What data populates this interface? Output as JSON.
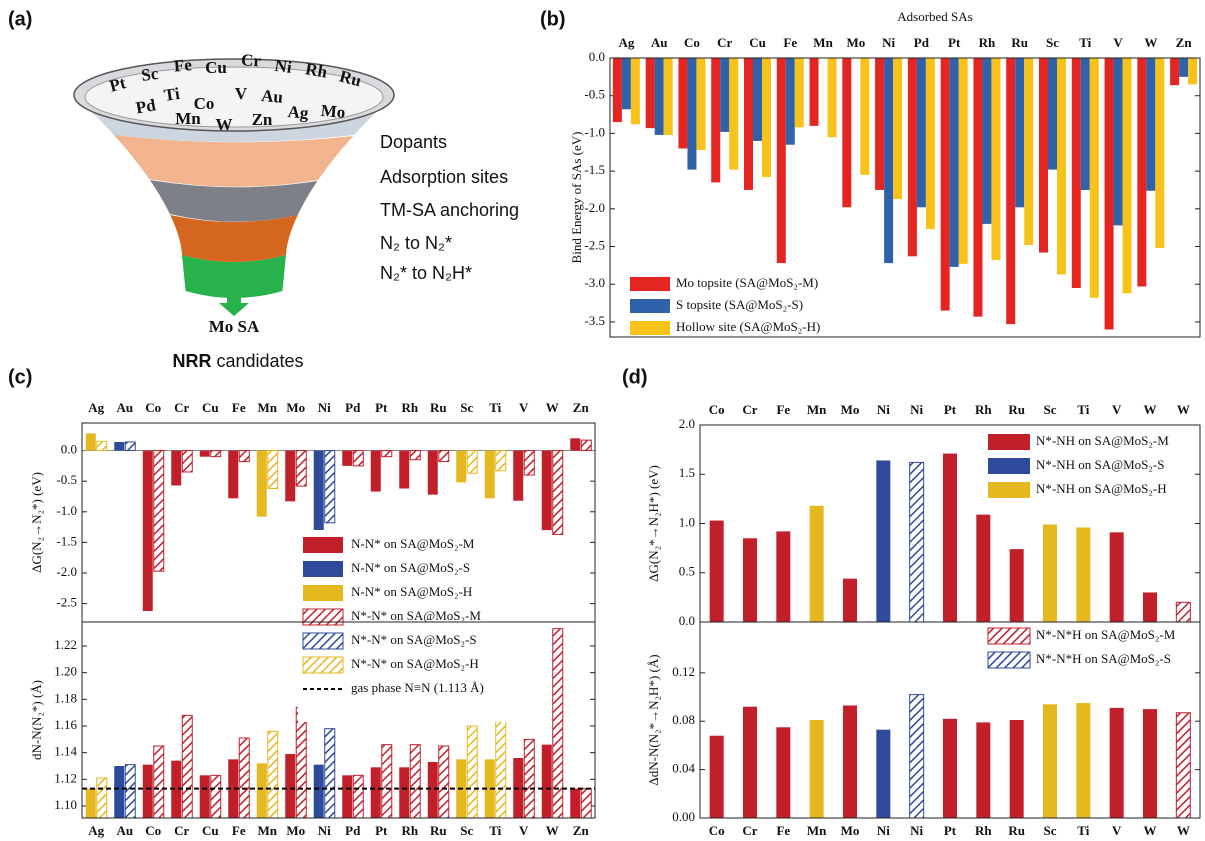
{
  "panel_labels": [
    "(a)",
    "(b)",
    "(c)",
    "(d)"
  ],
  "funnel": {
    "elements": [
      "Pt",
      "Sc",
      "Fe",
      "Cu",
      "Cr",
      "Ni",
      "Rh",
      "Ru",
      "Ti",
      "Co",
      "V",
      "Au",
      "Pd",
      "Mn",
      "W",
      "Zn",
      "Ag",
      "Mo"
    ],
    "stages": [
      "Dopants",
      "Adsorption sites",
      "TM-SA anchoring",
      "N₂ to N₂*",
      "N₂* to N₂H*"
    ],
    "output": "Mo SA",
    "caption_bold": "NRR",
    "caption": "candidates"
  },
  "chart_data": [
    {
      "type": "bar",
      "title": "Adsorbed SAs",
      "ylabel": "Bind Energy of SAs (eV)",
      "categories": [
        "Ag",
        "Au",
        "Co",
        "Cr",
        "Cu",
        "Fe",
        "Mn",
        "Mo",
        "Ni",
        "Pd",
        "Pt",
        "Rh",
        "Ru",
        "Sc",
        "Ti",
        "V",
        "W",
        "Zn"
      ],
      "series": [
        {
          "name": "Mo topsite (SA@MoS₂-M)",
          "color": "#e52521",
          "values": [
            -0.85,
            -0.93,
            -1.2,
            -1.65,
            -1.75,
            -2.72,
            -0.9,
            -1.98,
            -1.75,
            -2.63,
            -3.35,
            -3.43,
            -3.53,
            -2.58,
            -3.05,
            -3.6,
            -3.03,
            -0.36
          ]
        },
        {
          "name": "S topsite (SA@MoS₂-S)",
          "color": "#2f62a8",
          "values": [
            -0.68,
            -1.02,
            -1.48,
            -0.98,
            -1.1,
            -1.15,
            null,
            null,
            -2.72,
            -1.98,
            -2.77,
            -2.2,
            -1.98,
            -1.48,
            -1.75,
            -2.22,
            -1.76,
            -0.25
          ]
        },
        {
          "name": "Hollow site (SA@MoS₂-H)",
          "color": "#f7c31a",
          "values": [
            -0.88,
            -1.02,
            -1.22,
            -1.48,
            -1.58,
            -0.92,
            -1.05,
            -1.55,
            -1.87,
            -2.27,
            -2.73,
            -2.68,
            -2.48,
            -2.87,
            -3.18,
            -3.12,
            -2.52,
            -0.35
          ]
        }
      ],
      "ylim": [
        -3.7,
        0
      ],
      "yticks": [
        {
          "value": 0,
          "label": "0.0"
        },
        -0.5,
        {
          "value": -1,
          "label": "-1.0"
        },
        -1.5,
        {
          "value": -2,
          "label": "-2.0"
        },
        -2.5,
        {
          "value": -3,
          "label": "-3.0"
        },
        -3.5
      ],
      "legend": "lower left"
    },
    {
      "type": "bar",
      "legend": "lower right",
      "categories": [
        "Ag",
        "Au",
        "Co",
        "Cr",
        "Cu",
        "Fe",
        "Mn",
        "Mo",
        "Ni",
        "Pd",
        "Pt",
        "Rh",
        "Ru",
        "Sc",
        "Ti",
        "V",
        "W",
        "Zn"
      ],
      "panels": [
        {
          "ylabel": "ΔG(N₂→N₂*) (eV)",
          "ylim": [
            -2.8,
            0.45
          ],
          "yticks": [
            {
              "value": 0,
              "label": "0.0"
            },
            -0.5,
            {
              "value": -1,
              "label": "-1.0"
            },
            -1.5,
            {
              "value": -2,
              "label": "-2.0"
            },
            -2.5
          ]
        },
        {
          "ylabel": "dN-N(N₂*) (Å)",
          "ylim": [
            1.091,
            1.238
          ],
          "yticks": [
            {
              "value": 1.1,
              "label": "1.10"
            },
            1.12,
            1.14,
            1.16,
            1.18,
            {
              "value": 1.2,
              "label": "1.20"
            },
            1.22
          ]
        }
      ],
      "series": [
        {
          "name": "N-N* on SA@MoS₂-M",
          "color": "#c1202a",
          "hatch": false,
          "values": [
            null,
            null,
            -2.62,
            -0.57,
            -0.1,
            -0.78,
            null,
            -0.83,
            null,
            -0.25,
            -0.67,
            -0.62,
            -0.72,
            null,
            null,
            -0.82,
            -1.3,
            0.2
          ],
          "d_values": [
            null,
            null,
            1.131,
            1.134,
            1.123,
            1.135,
            null,
            1.139,
            null,
            1.123,
            1.129,
            1.129,
            1.133,
            null,
            null,
            1.136,
            1.146,
            1.113
          ]
        },
        {
          "name": "N-N* on SA@MoS₂-S",
          "color": "#2e4a9a",
          "hatch": false,
          "values": [
            null,
            0.14,
            null,
            null,
            null,
            null,
            null,
            null,
            -1.35,
            null,
            null,
            null,
            null,
            null,
            null,
            null,
            null,
            null
          ],
          "d_values": [
            null,
            1.13,
            null,
            null,
            null,
            null,
            null,
            null,
            1.131,
            null,
            null,
            null,
            null,
            null,
            null,
            null,
            null,
            null
          ]
        },
        {
          "name": "N-N* on SA@MoS₂-H",
          "color": "#e6b820",
          "hatch": false,
          "values": [
            0.28,
            null,
            null,
            null,
            null,
            null,
            -1.08,
            null,
            null,
            null,
            null,
            null,
            null,
            -0.52,
            -0.78,
            null,
            null,
            null
          ],
          "d_values": [
            1.113,
            null,
            null,
            null,
            null,
            null,
            1.132,
            null,
            null,
            null,
            null,
            null,
            null,
            1.135,
            1.135,
            null,
            null,
            null
          ]
        },
        {
          "name": "N*-N* on SA@MoS₂-M",
          "color": "#c1202a",
          "hatch": true,
          "values": [
            null,
            null,
            -1.97,
            -0.35,
            -0.1,
            -0.18,
            null,
            -0.58,
            null,
            -0.25,
            -0.1,
            -0.15,
            -0.18,
            null,
            null,
            -0.4,
            -1.37,
            0.17
          ],
          "d_values": [
            null,
            null,
            1.145,
            1.168,
            1.123,
            1.151,
            null,
            1.174,
            null,
            1.123,
            1.146,
            1.146,
            1.145,
            null,
            null,
            1.15,
            1.233,
            1.113
          ]
        },
        {
          "name": "N*-N* on SA@MoS₂-S",
          "color": "#2e4a9a",
          "hatch": true,
          "values": [
            null,
            0.14,
            null,
            null,
            null,
            null,
            null,
            null,
            -1.18,
            null,
            null,
            null,
            null,
            null,
            null,
            null,
            null,
            null
          ],
          "d_values": [
            null,
            1.131,
            null,
            null,
            null,
            null,
            null,
            null,
            1.158,
            null,
            null,
            null,
            null,
            null,
            null,
            null,
            null,
            null
          ]
        },
        {
          "name": "N*-N* on SA@MoS₂-H",
          "color": "#e6b820",
          "hatch": true,
          "values": [
            0.15,
            null,
            null,
            null,
            null,
            null,
            -0.62,
            null,
            null,
            null,
            null,
            null,
            null,
            -0.37,
            -0.33,
            null,
            null,
            null
          ],
          "d_values": [
            1.121,
            null,
            null,
            null,
            null,
            null,
            1.156,
            null,
            null,
            null,
            null,
            null,
            null,
            1.16,
            1.166,
            null,
            null,
            null
          ]
        }
      ],
      "reference": {
        "value": 1.113,
        "label": "gas phase N≡N (1.113 Å)"
      }
    },
    {
      "type": "bar",
      "categories": [
        "Co",
        "Cr",
        "Fe",
        "Mn",
        "Mo",
        "Ni",
        "Ni",
        "Pt",
        "Rh",
        "Ru",
        "Sc",
        "Ti",
        "V",
        "W",
        "W"
      ],
      "panels": [
        {
          "ylabel": "ΔG(N₂*→N₂H*) (eV)",
          "ylim": [
            0,
            2
          ],
          "yticks": [
            {
              "value": 0,
              "label": "0.0"
            },
            0.5,
            {
              "value": 1,
              "label": "1.0"
            },
            1.5,
            {
              "value": 2,
              "label": "2.0"
            }
          ]
        },
        {
          "ylabel": "ΔdN-N(N₂*→N₂H*) (Å)",
          "ylim": [
            0,
            0.162
          ],
          "yticks": [
            {
              "value": 0,
              "label": "0.00"
            },
            0.04,
            0.08,
            0.12
          ]
        }
      ],
      "series": [
        {
          "name": "N*-NH on SA@MoS₂-M",
          "color": "#c1202a",
          "hatch": false,
          "legend_panel": "top",
          "values": [
            1.03,
            0.85,
            0.92,
            null,
            0.44,
            null,
            null,
            1.71,
            1.09,
            0.74,
            null,
            null,
            0.91,
            0.3,
            null
          ],
          "d_values": [
            0.068,
            0.092,
            0.075,
            null,
            0.093,
            null,
            null,
            0.082,
            0.079,
            0.081,
            null,
            null,
            0.091,
            0.09,
            null
          ]
        },
        {
          "name": "N*-NH on SA@MoS₂-S",
          "color": "#2e4a9a",
          "hatch": false,
          "legend_panel": "top",
          "values": [
            null,
            null,
            null,
            null,
            null,
            1.64,
            null,
            null,
            null,
            null,
            null,
            null,
            null,
            null,
            null
          ],
          "d_values": [
            null,
            null,
            null,
            null,
            null,
            0.073,
            null,
            null,
            null,
            null,
            null,
            null,
            null,
            null,
            null
          ]
        },
        {
          "name": "N*-NH on SA@MoS₂-H",
          "color": "#e6b820",
          "hatch": false,
          "legend_panel": "top",
          "values": [
            null,
            null,
            null,
            1.18,
            null,
            null,
            null,
            null,
            null,
            null,
            0.99,
            0.96,
            null,
            null,
            null
          ],
          "d_values": [
            null,
            null,
            null,
            0.081,
            null,
            null,
            null,
            null,
            null,
            null,
            0.094,
            0.095,
            null,
            null,
            null
          ]
        },
        {
          "name": "N*-N*H on SA@MoS₂-M",
          "color": "#c1202a",
          "hatch": true,
          "legend_panel": "bottom",
          "values": [
            null,
            null,
            null,
            null,
            null,
            null,
            null,
            null,
            null,
            null,
            null,
            null,
            null,
            null,
            0.2
          ],
          "d_values": [
            null,
            null,
            null,
            null,
            null,
            null,
            null,
            null,
            null,
            null,
            null,
            null,
            null,
            null,
            0.087
          ]
        },
        {
          "name": "N*-N*H on SA@MoS₂-S",
          "color": "#2e4a9a",
          "hatch": true,
          "legend_panel": "bottom",
          "values": [
            null,
            null,
            null,
            null,
            null,
            null,
            1.62,
            null,
            null,
            null,
            null,
            null,
            null,
            null,
            null
          ],
          "d_values": [
            null,
            null,
            null,
            null,
            null,
            null,
            0.102,
            null,
            null,
            null,
            null,
            null,
            null,
            null,
            null
          ]
        }
      ]
    }
  ]
}
